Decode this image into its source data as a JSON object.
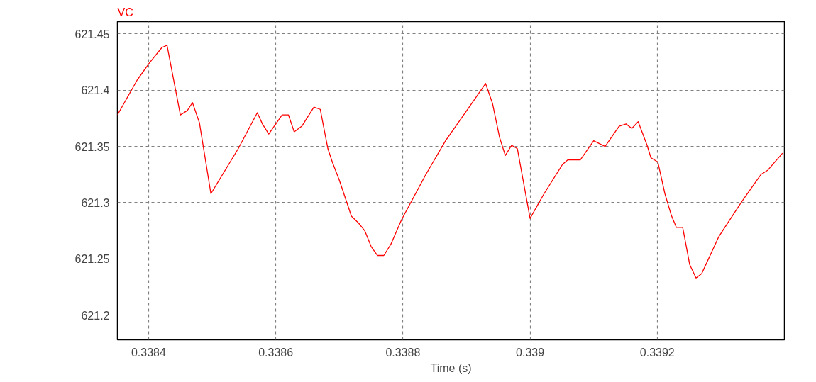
{
  "chart_data": {
    "type": "line",
    "title": "VC",
    "xlabel": "Time (s)",
    "xlim": [
      0.338351,
      0.3394
    ],
    "ylim": [
      621.178,
      621.461
    ],
    "xticks": [
      0.3384,
      0.3386,
      0.3388,
      0.339,
      0.3392
    ],
    "yticks": [
      621.2,
      621.25,
      621.3,
      621.35,
      621.4,
      621.45
    ],
    "grid": true,
    "marker": "none",
    "line_style": "solid",
    "series": [
      {
        "color": "#ff0000",
        "x": [
          0.338351,
          0.338382,
          0.338401,
          0.338421,
          0.338429,
          0.33845,
          0.338461,
          0.338469,
          0.33848,
          0.338498,
          0.338541,
          0.338571,
          0.338579,
          0.338589,
          0.33861,
          0.33862,
          0.338629,
          0.338641,
          0.33866,
          0.33867,
          0.338682,
          0.338689,
          0.3387,
          0.338719,
          0.33873,
          0.33874,
          0.33875,
          0.33876,
          0.33877,
          0.338781,
          0.338798,
          0.338836,
          0.338867,
          0.338903,
          0.33893,
          0.338941,
          0.338952,
          0.338961,
          0.338971,
          0.33898,
          0.339,
          0.339022,
          0.339051,
          0.339059,
          0.339079,
          0.3391,
          0.339118,
          0.33914,
          0.339151,
          0.33916,
          0.33917,
          0.339184,
          0.33919,
          0.339201,
          0.339212,
          0.339222,
          0.33923,
          0.33924,
          0.339251,
          0.339261,
          0.33927,
          0.339297,
          0.339333,
          0.339363,
          0.339374,
          0.339397
        ],
        "values": [
          621.378,
          621.409,
          621.424,
          621.438,
          621.44,
          621.378,
          621.382,
          621.389,
          621.371,
          621.308,
          621.348,
          621.38,
          621.37,
          621.361,
          621.378,
          621.378,
          621.363,
          621.368,
          621.385,
          621.383,
          621.348,
          621.336,
          621.32,
          621.288,
          621.282,
          621.275,
          621.261,
          621.253,
          621.253,
          621.263,
          621.285,
          621.325,
          621.355,
          621.384,
          621.406,
          621.388,
          621.358,
          621.342,
          621.351,
          621.348,
          621.286,
          621.308,
          621.334,
          621.338,
          621.338,
          621.355,
          621.35,
          621.368,
          621.37,
          621.366,
          621.372,
          621.351,
          621.34,
          621.336,
          621.308,
          621.289,
          621.278,
          621.278,
          621.245,
          621.233,
          621.237,
          621.27,
          621.301,
          621.325,
          621.329,
          621.344
        ]
      }
    ]
  }
}
